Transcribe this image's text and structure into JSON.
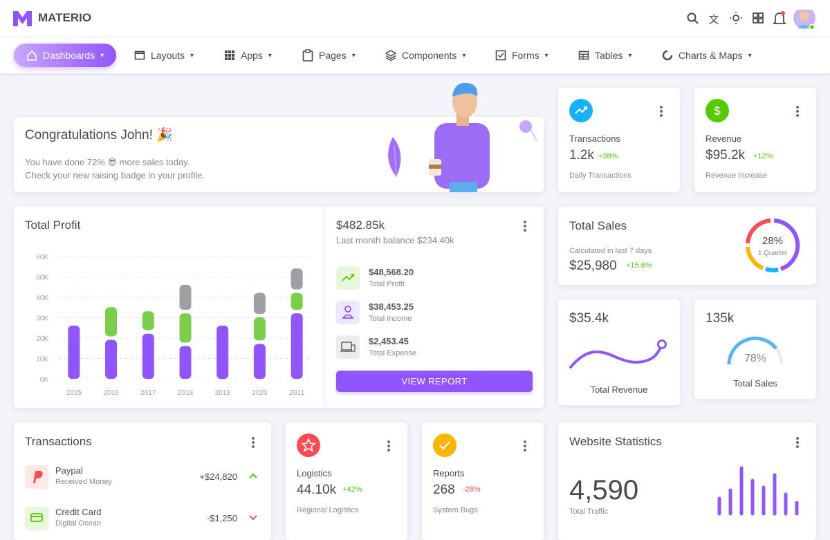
{
  "header": {
    "brand": "MATERIO"
  },
  "nav": [
    "Dashboards",
    "Layouts",
    "Apps",
    "Pages",
    "Components",
    "Forms",
    "Tables",
    "Charts & Maps"
  ],
  "congrats": {
    "title": "Congratulations John! 🎉",
    "lines": [
      "You have done 72% 😎 more sales today.",
      "Check your new raising badge in your profile."
    ]
  },
  "transactions_stat": {
    "title": "Transactions",
    "value": "1.2k",
    "change": "+38%",
    "caption": "Daily Transactions"
  },
  "revenue_stat": {
    "title": "Revenue",
    "value": "$95.2k",
    "change": "+12%",
    "caption": "Revenue Increase"
  },
  "total_profit": {
    "title": "Total Profit",
    "amount": "$482.85k",
    "subtitle": "Last month balance $234.40k",
    "items": [
      {
        "amount": "$48,568.20",
        "label": "Total Profit"
      },
      {
        "amount": "$38,453.25",
        "label": "Total Income"
      },
      {
        "amount": "$2,453.45",
        "label": "Total Expense"
      }
    ],
    "button": "VIEW REPORT"
  },
  "chart_data": {
    "type": "bar",
    "stacked": true,
    "categories": [
      "2015",
      "2016",
      "2017",
      "2018",
      "2019",
      "2020",
      "2021"
    ],
    "series": [
      {
        "color": "#9155fd",
        "values": [
          27000,
          20000,
          23000,
          17000,
          27000,
          18000,
          33000
        ]
      },
      {
        "color": "#7bcd4a",
        "values": [
          null,
          16000,
          11000,
          16000,
          null,
          13000,
          10000
        ]
      },
      {
        "color": "#9e9ea3",
        "values": [
          null,
          null,
          null,
          14000,
          null,
          12000,
          12000
        ]
      }
    ],
    "ylim": [
      0,
      60000
    ],
    "yticks": [
      {
        "value": 0,
        "label": "0K"
      },
      {
        "value": 10000,
        "label": "10K"
      },
      {
        "value": 20000,
        "label": "20K"
      },
      {
        "value": 30000,
        "label": "30K"
      },
      {
        "value": 40000,
        "label": "40K"
      },
      {
        "value": 50000,
        "label": "50K"
      },
      {
        "value": 60000,
        "label": "60K"
      }
    ],
    "grid": true
  },
  "total_sales": {
    "title": "Total Sales",
    "caption": "Calculated in last 7 days",
    "value": "$25,980",
    "change": "+15.6%",
    "donut_value": "28%",
    "donut_label": "1 Quarter"
  },
  "revenue_mini": {
    "value": "$35.4k",
    "label": "Total Revenue"
  },
  "sales_mini": {
    "value": "135k",
    "gauge_value": "78%",
    "label": "Total Sales"
  },
  "transactions_list": {
    "title": "Transactions",
    "items": [
      {
        "name": "Paypal",
        "detail": "Received Money",
        "amount": "+$24,820"
      },
      {
        "name": "Credit Card",
        "detail": "Digital Ocean",
        "amount": "-$1,250"
      }
    ]
  },
  "logistics": {
    "title": "Logistics",
    "value": "44.10k",
    "change": "+42%",
    "caption": "Regional Logistics"
  },
  "reports": {
    "title": "Reports",
    "value": "268",
    "change": "-28%",
    "caption": "System Bugs"
  },
  "website_statistics": {
    "title": "Website Statistics",
    "value": "4,590",
    "caption": "Total Traffic"
  }
}
